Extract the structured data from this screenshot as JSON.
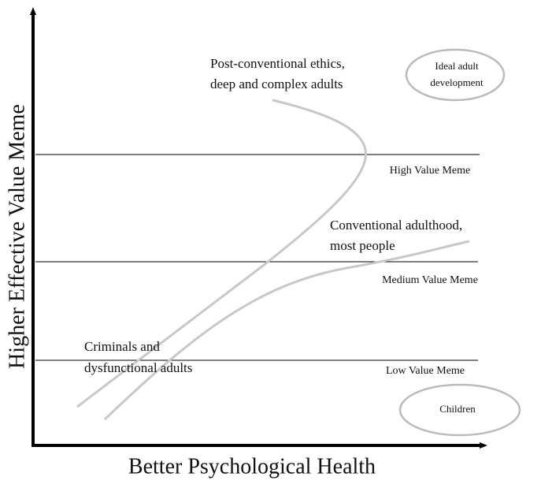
{
  "axes": {
    "y_label": "Higher Effective Value Meme",
    "x_label": "Better Psychological Health"
  },
  "levels": [
    "High Value Meme",
    "Medium Value Meme",
    "Low Value Meme"
  ],
  "annotations": [
    {
      "lines": [
        "Post-conventional ethics,",
        "deep and complex adults"
      ]
    },
    {
      "lines": [
        "Conventional adulthood,",
        "most people"
      ]
    },
    {
      "lines": [
        "Criminals and",
        "dysfunctional adults"
      ]
    }
  ],
  "ovals": [
    {
      "lines": [
        "Ideal adult",
        "development"
      ]
    },
    {
      "lines": [
        "Children"
      ]
    }
  ]
}
